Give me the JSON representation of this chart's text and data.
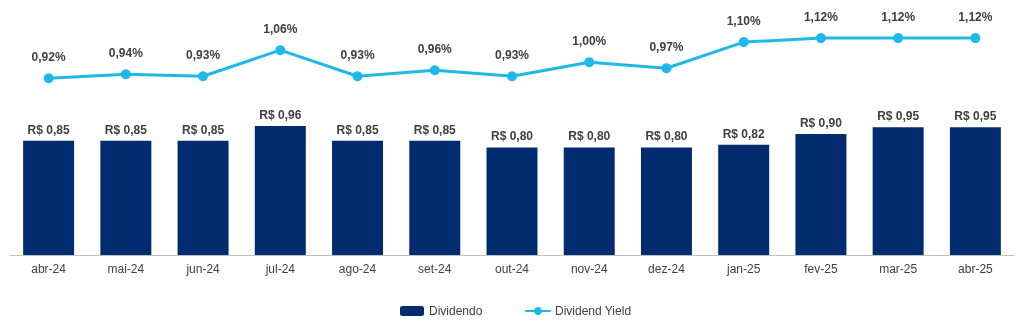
{
  "chart_data": [
    {
      "type": "bar",
      "categories": [
        "abr-24",
        "mai-24",
        "jun-24",
        "jul-24",
        "ago-24",
        "set-24",
        "out-24",
        "nov-24",
        "dez-24",
        "jan-25",
        "fev-25",
        "mar-25",
        "abr-25"
      ],
      "series": [
        {
          "name": "Dividendo",
          "color": "#002b6e",
          "values": [
            0.85,
            0.85,
            0.85,
            0.96,
            0.85,
            0.85,
            0.8,
            0.8,
            0.8,
            0.82,
            0.9,
            0.95,
            0.95
          ],
          "value_labels": [
            "R$ 0,85",
            "R$ 0,85",
            "R$ 0,85",
            "R$ 0,96",
            "R$ 0,85",
            "R$ 0,85",
            "R$ 0,80",
            "R$ 0,80",
            "R$ 0,80",
            "R$ 0,82",
            "R$ 0,90",
            "R$ 0,95",
            "R$ 0,95"
          ]
        }
      ],
      "tick_labels": "x",
      "legend": "bottom"
    },
    {
      "type": "line",
      "categories": [
        null,
        null,
        null,
        null,
        null,
        null,
        null,
        null,
        null,
        null,
        null,
        null,
        null
      ],
      "series": [
        {
          "name": "Dividend Yield",
          "color": "#1fb8e8",
          "values": [
            0.92,
            0.94,
            0.93,
            1.06,
            0.93,
            0.96,
            0.93,
            1.0,
            0.97,
            1.1,
            1.12,
            1.12,
            1.12
          ],
          "value_labels": [
            "0,92%",
            "0,94%",
            "0,93%",
            "1,06%",
            "0,93%",
            "0,96%",
            "0,93%",
            "1,00%",
            "0,97%",
            "1,10%",
            "1,12%",
            "1,12%",
            "1,12%"
          ]
        }
      ],
      "marker": "circle",
      "tick_labels": false,
      "legend": "bottom"
    }
  ]
}
